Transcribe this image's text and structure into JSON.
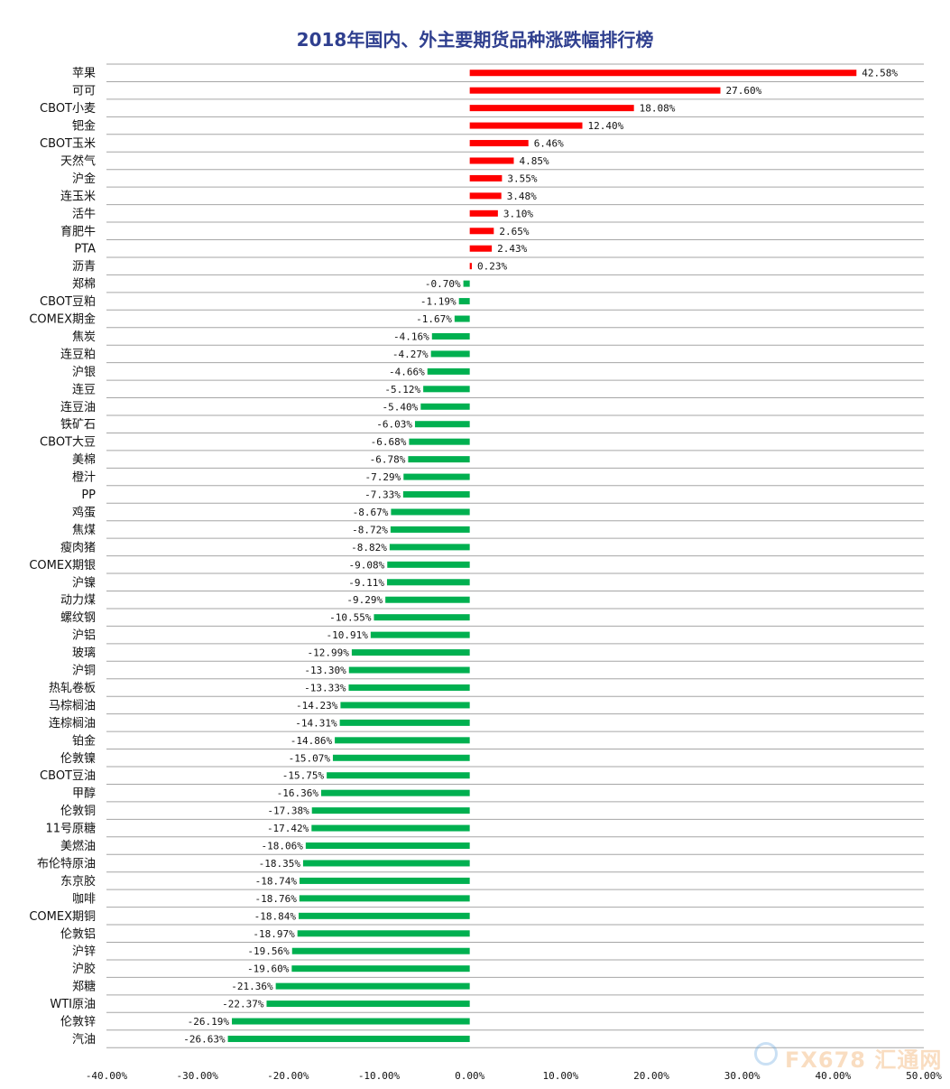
{
  "chart_data": {
    "type": "bar",
    "orientation": "horizontal",
    "title": "2018年国内、外主要期货品种涨跌幅排行榜",
    "xlim": [
      -40,
      50
    ],
    "ticks": [
      -40,
      -30,
      -20,
      -10,
      0,
      10,
      20,
      30,
      40,
      50
    ],
    "tick_labels": [
      "-40.00%",
      "-30.00%",
      "-20.00%",
      "-10.00%",
      "0.00%",
      "10.00%",
      "20.00%",
      "30.00%",
      "40.00%",
      "50.00%"
    ],
    "grid": "horizontal",
    "colors": {
      "positive": "#ff0000",
      "negative": "#00b050",
      "title": "#2f3f8f",
      "grid": "#a6a6a6"
    },
    "categories": [
      "苹果",
      "可可",
      "CBOT小麦",
      "钯金",
      "CBOT玉米",
      "天然气",
      "沪金",
      "连玉米",
      "活牛",
      "育肥牛",
      "PTA",
      "沥青",
      "郑棉",
      "CBOT豆粕",
      "COMEX期金",
      "焦炭",
      "连豆粕",
      "沪银",
      "连豆",
      "连豆油",
      "铁矿石",
      "CBOT大豆",
      "美棉",
      "橙汁",
      "PP",
      "鸡蛋",
      "焦煤",
      "瘦肉猪",
      "COMEX期银",
      "沪镍",
      "动力煤",
      "螺纹钢",
      "沪铝",
      "玻璃",
      "沪铜",
      "热轧卷板",
      "马棕榈油",
      "连棕榈油",
      "铂金",
      "伦敦镍",
      "CBOT豆油",
      "甲醇",
      "伦敦铜",
      "11号原糖",
      "美燃油",
      "布伦特原油",
      "东京胶",
      "咖啡",
      "COMEX期铜",
      "伦敦铝",
      "沪锌",
      "沪胶",
      "郑糖",
      "WTI原油",
      "伦敦锌",
      "汽油"
    ],
    "values": [
      42.58,
      27.6,
      18.08,
      12.4,
      6.46,
      4.85,
      3.55,
      3.48,
      3.1,
      2.65,
      2.43,
      0.23,
      -0.7,
      -1.19,
      -1.67,
      -4.16,
      -4.27,
      -4.66,
      -5.12,
      -5.4,
      -6.03,
      -6.68,
      -6.78,
      -7.29,
      -7.33,
      -8.67,
      -8.72,
      -8.82,
      -9.08,
      -9.11,
      -9.29,
      -10.55,
      -10.91,
      -12.99,
      -13.3,
      -13.33,
      -14.23,
      -14.31,
      -14.86,
      -15.07,
      -15.75,
      -16.36,
      -17.38,
      -17.42,
      -18.06,
      -18.35,
      -18.74,
      -18.76,
      -18.84,
      -18.97,
      -19.56,
      -19.6,
      -21.36,
      -22.37,
      -26.19,
      -26.63
    ],
    "value_labels": [
      "42.58%",
      "27.60%",
      "18.08%",
      "12.40%",
      "6.46%",
      "4.85%",
      "3.55%",
      "3.48%",
      "3.10%",
      "2.65%",
      "2.43%",
      "0.23%",
      "-0.70%",
      "-1.19%",
      "-1.67%",
      "-4.16%",
      "-4.27%",
      "-4.66%",
      "-5.12%",
      "-5.40%",
      "-6.03%",
      "-6.68%",
      "-6.78%",
      "-7.29%",
      "-7.33%",
      "-8.67%",
      "-8.72%",
      "-8.82%",
      "-9.08%",
      "-9.11%",
      "-9.29%",
      "-10.55%",
      "-10.91%",
      "-12.99%",
      "-13.30%",
      "-13.33%",
      "-14.23%",
      "-14.31%",
      "-14.86%",
      "-15.07%",
      "-15.75%",
      "-16.36%",
      "-17.38%",
      "-17.42%",
      "-18.06%",
      "-18.35%",
      "-18.74%",
      "-18.76%",
      "-18.84%",
      "-18.97%",
      "-19.56%",
      "-19.60%",
      "-21.36%",
      "-22.37%",
      "-26.19%",
      "-26.63%"
    ]
  },
  "watermark": {
    "text": "FX678 汇通网"
  }
}
